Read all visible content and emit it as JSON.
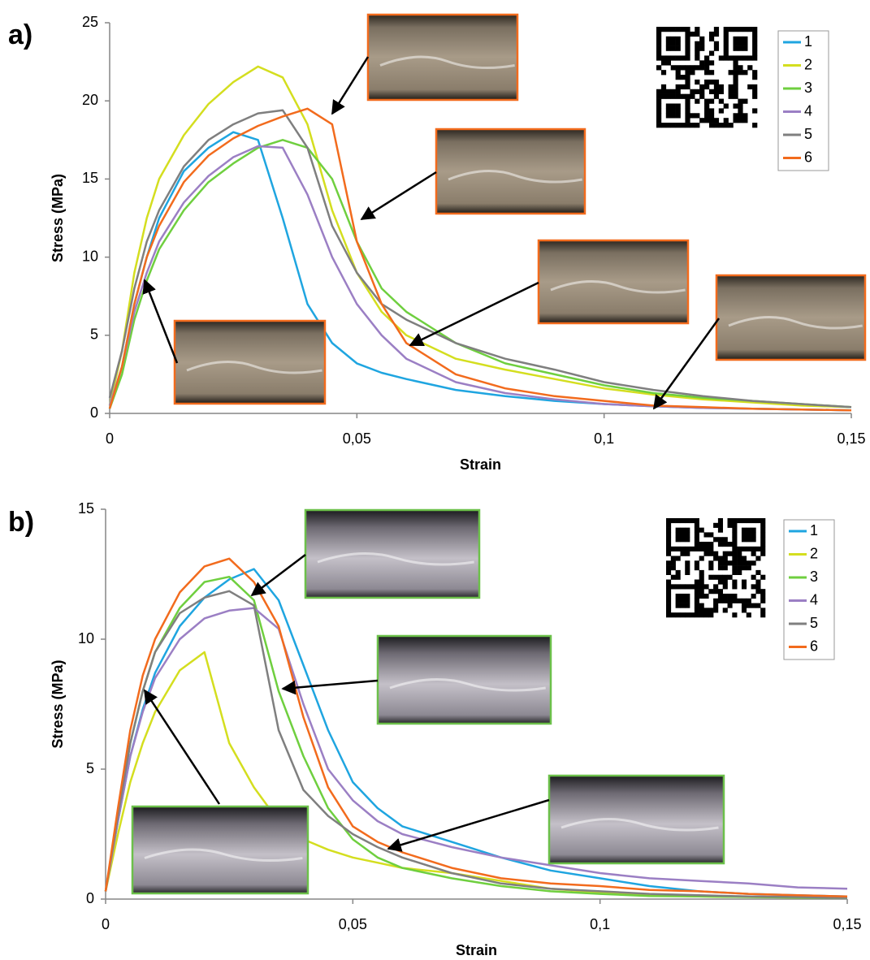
{
  "chart_data": [
    {
      "type": "line",
      "label": "a)",
      "x_label": "Strain",
      "y_label": "Stress (MPa)",
      "xlim": [
        0,
        0.15
      ],
      "ylim": [
        0,
        25
      ],
      "xticks": [
        0,
        {
          "value": 0.05,
          "label": "0,05"
        },
        {
          "value": 0.1,
          "label": "0,1"
        },
        {
          "value": 0.15,
          "label": "0,15"
        }
      ],
      "yticks": [
        0,
        5,
        10,
        15,
        20,
        25
      ],
      "x": [
        0,
        0.0025,
        0.005,
        0.0075,
        0.01,
        0.015,
        0.02,
        0.025,
        0.03,
        0.035,
        0.04,
        0.045,
        0.05,
        0.055,
        0.06,
        0.07,
        0.08,
        0.09,
        0.1,
        0.11,
        0.12,
        0.13,
        0.14,
        0.15
      ],
      "series": [
        {
          "name": "1",
          "color": "#1fa5e0",
          "values": [
            0.3,
            3,
            7,
            10,
            12.5,
            15.5,
            17,
            18,
            17.5,
            12.5,
            7,
            4.5,
            3.2,
            2.6,
            2.2,
            1.5,
            1.1,
            0.8,
            0.6,
            0.45,
            0.35,
            0.3,
            0.25,
            0.2
          ]
        },
        {
          "name": "2",
          "color": "#d4de1f",
          "values": [
            0.5,
            4,
            9,
            12.5,
            15,
            17.8,
            19.8,
            21.2,
            22.2,
            21.5,
            18.5,
            13,
            9,
            6.5,
            5,
            3.5,
            2.8,
            2.2,
            1.6,
            1.2,
            0.9,
            0.7,
            0.5,
            0.4
          ]
        },
        {
          "name": "3",
          "color": "#6fcf3f",
          "values": [
            0.3,
            2.5,
            6,
            8.5,
            10.5,
            13,
            14.8,
            16,
            17,
            17.5,
            17,
            15,
            11,
            8,
            6.5,
            4.5,
            3.2,
            2.5,
            1.8,
            1.3,
            1,
            0.8,
            0.6,
            0.4
          ]
        },
        {
          "name": "4",
          "color": "#9b7fc4",
          "values": [
            0.5,
            3,
            6.5,
            9,
            11,
            13.5,
            15.2,
            16.4,
            17.1,
            17,
            14,
            10,
            7,
            5,
            3.5,
            2,
            1.3,
            0.9,
            0.6,
            0.45,
            0.35,
            0.3,
            0.25,
            0.2
          ]
        },
        {
          "name": "5",
          "color": "#7f7f7f",
          "values": [
            1,
            4,
            8,
            11,
            13,
            15.8,
            17.5,
            18.5,
            19.2,
            19.4,
            17,
            12,
            9,
            7,
            6,
            4.5,
            3.5,
            2.8,
            2,
            1.5,
            1.1,
            0.8,
            0.6,
            0.4
          ]
        },
        {
          "name": "6",
          "color": "#f26b1d",
          "values": [
            0.3,
            3,
            7,
            10,
            12,
            14.8,
            16.5,
            17.6,
            18.4,
            19,
            19.5,
            18.5,
            11,
            7,
            4.5,
            2.5,
            1.6,
            1.1,
            0.8,
            0.5,
            0.4,
            0.3,
            0.25,
            0.2
          ]
        }
      ]
    },
    {
      "type": "line",
      "label": "b)",
      "x_label": "Strain",
      "y_label": "Stress (MPa)",
      "xlim": [
        0,
        0.15
      ],
      "ylim": [
        0,
        15
      ],
      "xticks": [
        0,
        {
          "value": 0.05,
          "label": "0,05"
        },
        {
          "value": 0.1,
          "label": "0,1"
        },
        {
          "value": 0.15,
          "label": "0,15"
        }
      ],
      "yticks": [
        0,
        5,
        10,
        15
      ],
      "x": [
        0,
        0.0025,
        0.005,
        0.0075,
        0.01,
        0.015,
        0.02,
        0.025,
        0.03,
        0.035,
        0.04,
        0.045,
        0.05,
        0.055,
        0.06,
        0.07,
        0.08,
        0.09,
        0.1,
        0.11,
        0.12,
        0.13,
        0.14,
        0.15
      ],
      "series": [
        {
          "name": "1",
          "color": "#1fa5e0",
          "values": [
            0.3,
            3,
            5.5,
            7.3,
            8.7,
            10.5,
            11.6,
            12.3,
            12.7,
            11.5,
            9,
            6.5,
            4.5,
            3.5,
            2.8,
            2.2,
            1.6,
            1.1,
            0.8,
            0.5,
            0.3,
            0.2,
            0.15,
            0.1
          ]
        },
        {
          "name": "2",
          "color": "#d4de1f",
          "values": [
            0.3,
            2.5,
            4.5,
            6,
            7.2,
            8.8,
            9.5,
            6,
            4.3,
            3,
            2.3,
            1.9,
            1.6,
            1.4,
            1.2,
            1,
            0.7,
            0.4,
            0.25,
            0.15,
            0.1,
            0.08,
            0.06,
            0.05
          ]
        },
        {
          "name": "3",
          "color": "#6fcf3f",
          "values": [
            0.3,
            3.2,
            6,
            8,
            9.5,
            11.2,
            12.2,
            12.4,
            11.5,
            8,
            5.5,
            3.5,
            2.3,
            1.6,
            1.2,
            0.8,
            0.5,
            0.3,
            0.2,
            0.12,
            0.1,
            0.08,
            0.06,
            0.05
          ]
        },
        {
          "name": "4",
          "color": "#9b7fc4",
          "values": [
            0.3,
            3,
            5.5,
            7.2,
            8.5,
            10,
            10.8,
            11.1,
            11.2,
            10.4,
            7.5,
            5,
            3.8,
            3,
            2.5,
            2,
            1.6,
            1.3,
            1,
            0.8,
            0.7,
            0.6,
            0.45,
            0.4
          ]
        },
        {
          "name": "5",
          "color": "#7f7f7f",
          "values": [
            0.3,
            3.2,
            6,
            8,
            9.5,
            11,
            11.6,
            11.85,
            11.3,
            6.5,
            4.2,
            3.2,
            2.5,
            2,
            1.6,
            1,
            0.6,
            0.4,
            0.3,
            0.2,
            0.15,
            0.1,
            0.08,
            0.05
          ]
        },
        {
          "name": "6",
          "color": "#f26b1d",
          "values": [
            0.3,
            3.5,
            6.5,
            8.6,
            10,
            11.8,
            12.8,
            13.1,
            12.2,
            10.5,
            7,
            4.3,
            2.8,
            2.2,
            1.8,
            1.2,
            0.8,
            0.6,
            0.5,
            0.35,
            0.3,
            0.2,
            0.15,
            0.1
          ]
        }
      ]
    }
  ]
}
